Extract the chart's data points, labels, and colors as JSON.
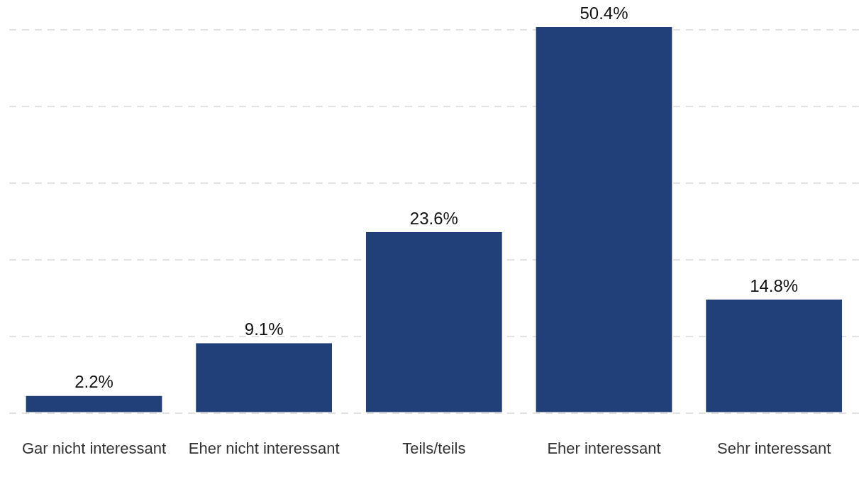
{
  "chart_data": {
    "type": "bar",
    "categories": [
      "Gar nicht interessant",
      "Eher nicht interessant",
      "Teils/teils",
      "Eher interessant",
      "Sehr interessant"
    ],
    "values": [
      2.2,
      9.1,
      23.6,
      50.4,
      14.8
    ],
    "value_labels": [
      "2.2%",
      "9.1%",
      "23.6%",
      "50.4%",
      "14.8%"
    ],
    "color": "#21407a",
    "yticks": [
      {
        "value": 0,
        "label": null
      },
      {
        "value": 10,
        "label": null
      },
      {
        "value": 20,
        "label": null
      },
      {
        "value": 30,
        "label": null
      },
      {
        "value": 40,
        "label": null
      },
      {
        "value": 50,
        "label": null
      }
    ],
    "grid": "y",
    "tick_labels": "x",
    "legend": false
  }
}
